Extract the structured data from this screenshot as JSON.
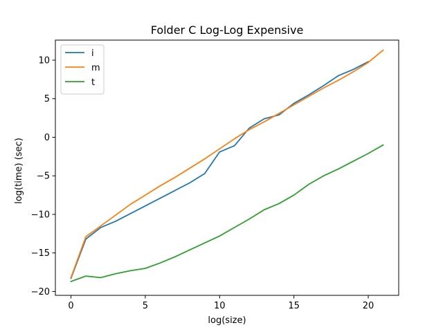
{
  "chart_data": {
    "type": "line",
    "title": "Folder C Log-Log Expensive",
    "xlabel": "log(size)",
    "ylabel": "log(time) (sec)",
    "xlim": [
      -1.05,
      22.05
    ],
    "ylim": [
      -20.5,
      12.6
    ],
    "xticks": [
      0,
      5,
      10,
      15,
      20
    ],
    "yticks": [
      -20,
      -15,
      -10,
      -5,
      0,
      5,
      10
    ],
    "xtick_labels": [
      "0",
      "5",
      "10",
      "15",
      "20"
    ],
    "ytick_labels": [
      "−20",
      "−15",
      "−10",
      "−5",
      "0",
      "5",
      "10"
    ],
    "grid": false,
    "legend_position": "top-left",
    "series": [
      {
        "name": "i",
        "color": "#1f77b4",
        "x": [
          0,
          1,
          2,
          3,
          4,
          5,
          6,
          7,
          8,
          9,
          10,
          11,
          12,
          13,
          14,
          15,
          16,
          17,
          18,
          19,
          20
        ],
        "y": [
          -18.3,
          -13.2,
          -11.7,
          -10.9,
          -9.9,
          -8.9,
          -7.9,
          -6.9,
          -5.9,
          -4.7,
          -1.9,
          -1.1,
          1.2,
          2.4,
          2.9,
          4.4,
          5.5,
          6.7,
          8.0,
          8.8,
          9.8
        ]
      },
      {
        "name": "m",
        "color": "#ff7f0e",
        "x": [
          0,
          1,
          2,
          3,
          4,
          5,
          6,
          7,
          8,
          9,
          10,
          11,
          12,
          13,
          14,
          15,
          16,
          17,
          18,
          19,
          20,
          21
        ],
        "y": [
          -18.2,
          -12.9,
          -11.5,
          -10.1,
          -8.7,
          -7.5,
          -6.3,
          -5.2,
          -4.0,
          -2.8,
          -1.5,
          -0.2,
          1.0,
          2.0,
          3.1,
          4.2,
          5.3,
          6.4,
          7.4,
          8.5,
          9.7,
          11.3
        ]
      },
      {
        "name": "t",
        "color": "#2ca02c",
        "x": [
          0,
          1,
          2,
          3,
          4,
          5,
          6,
          7,
          8,
          9,
          10,
          11,
          12,
          13,
          14,
          15,
          16,
          17,
          18,
          19,
          20,
          21
        ],
        "y": [
          -18.7,
          -18.0,
          -18.2,
          -17.7,
          -17.3,
          -17.0,
          -16.3,
          -15.5,
          -14.6,
          -13.7,
          -12.8,
          -11.7,
          -10.6,
          -9.4,
          -8.6,
          -7.5,
          -6.1,
          -5.0,
          -4.1,
          -3.1,
          -2.1,
          -1.0
        ]
      }
    ]
  }
}
